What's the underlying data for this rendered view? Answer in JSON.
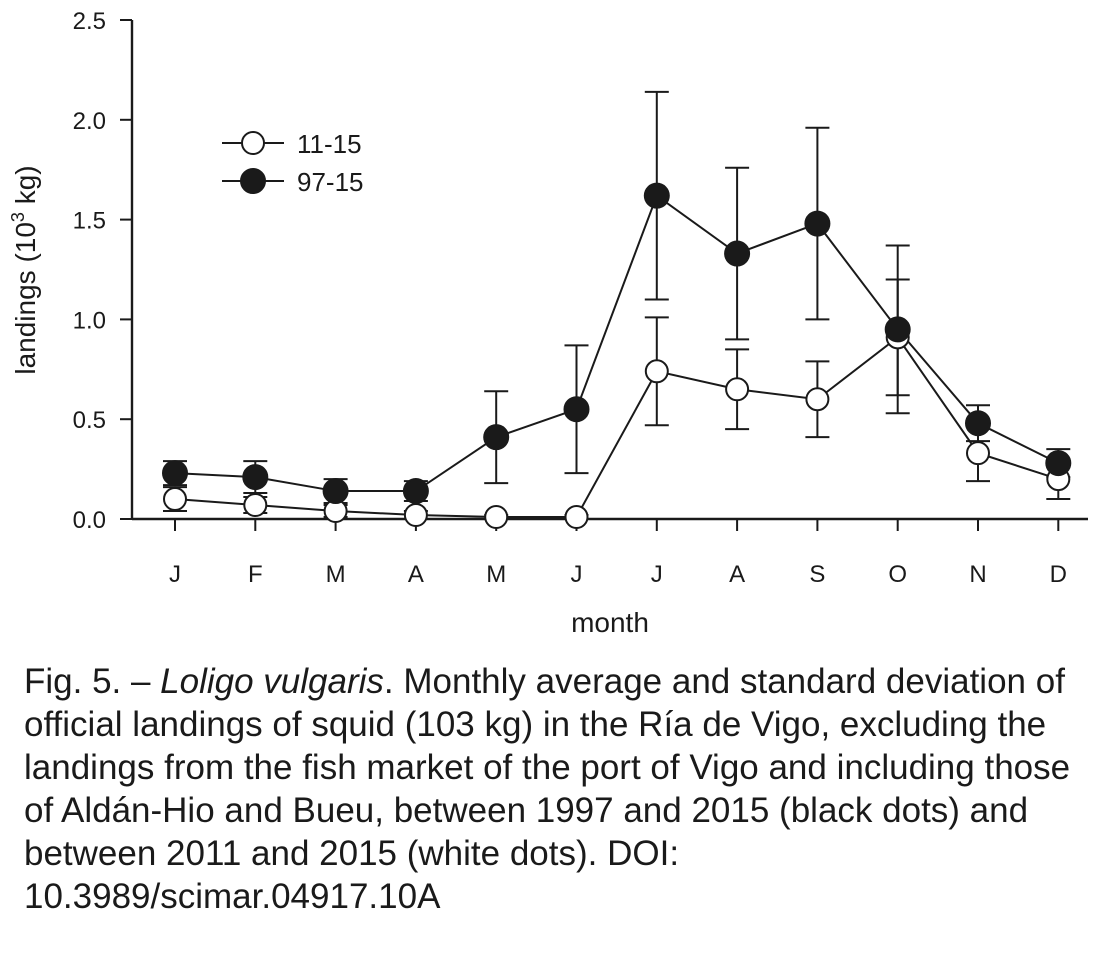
{
  "chart_data": {
    "type": "line",
    "xlabel": "month",
    "ylabel": "landings (10",
    "ylabel_sup": "3",
    "ylabel_end": " kg)",
    "ylim": [
      0,
      2.5
    ],
    "yticks": [
      "0.0",
      "0.5",
      "1.0",
      "1.5",
      "2.0",
      "2.5"
    ],
    "categories": [
      "J",
      "F",
      "M",
      "A",
      "M",
      "J",
      "J",
      "A",
      "S",
      "O",
      "N",
      "D"
    ],
    "legend_position": "top-left",
    "series": [
      {
        "name": "11-15",
        "marker": "open-circle",
        "values": [
          0.1,
          0.07,
          0.04,
          0.02,
          0.01,
          0.01,
          0.74,
          0.65,
          0.6,
          0.91,
          0.33,
          0.2
        ],
        "error": [
          0.06,
          0.04,
          0.03,
          0.02,
          0.01,
          0.01,
          0.27,
          0.2,
          0.19,
          0.29,
          0.14,
          0.1
        ]
      },
      {
        "name": "97-15",
        "marker": "filled-circle",
        "values": [
          0.23,
          0.21,
          0.14,
          0.14,
          0.41,
          0.55,
          1.62,
          1.33,
          1.48,
          0.95,
          0.48,
          0.28
        ],
        "error": [
          0.06,
          0.08,
          0.06,
          0.05,
          0.23,
          0.32,
          0.52,
          0.43,
          0.48,
          0.42,
          0.09,
          0.07
        ]
      }
    ],
    "colors": {
      "line": "#1a1a1a",
      "filled_marker": "#1a1a1a",
      "open_marker": "#ffffff"
    }
  },
  "caption": {
    "prefix": "Fig. 5. – ",
    "species": "Loligo vulgaris",
    "text": ". Monthly average and standard deviation of official landings of squid (103 kg) in the Ría de Vigo, excluding the landings from the fish market of the port of Vigo and including those of Aldán-Hio and Bueu, between 1997 and 2015 (black dots) and between 2011 and 2015 (white dots). DOI: 10.3989/scimar.04917.10A"
  }
}
